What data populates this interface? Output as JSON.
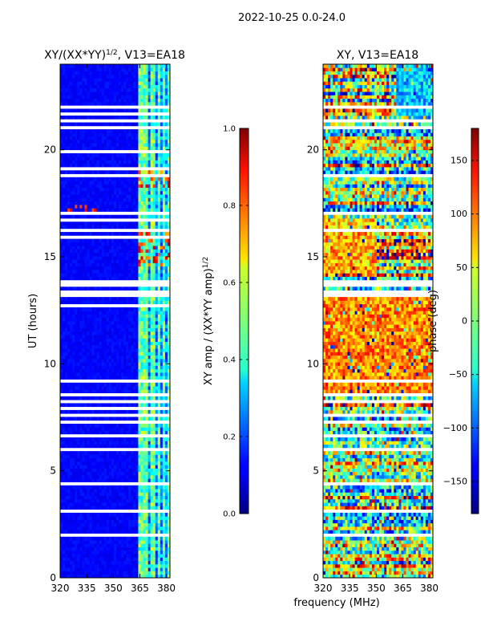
{
  "suptitle": "2022-10-25 0.0-24.0",
  "xlabel_common": "frequency (MHz)",
  "chart_data": [
    {
      "type": "heatmap",
      "title_main": "XY/(XX*YY)",
      "title_sup": "1/2",
      "title_rest": ", V13=EA18",
      "xlabel": "",
      "ylabel": "UT (hours)",
      "xlim": [
        320,
        382
      ],
      "ylim": [
        0,
        24
      ],
      "x_ticks": [
        320,
        335,
        350,
        365,
        380
      ],
      "y_ticks": [
        0,
        5,
        10,
        15,
        20
      ],
      "colorbar": {
        "label_main": "XY amp / (XX*YY amp)",
        "label_sup": "1/2",
        "range": [
          0.0,
          1.0
        ],
        "ticks": [
          "0.0",
          "0.2",
          "0.4",
          "0.6",
          "0.8",
          "1.0"
        ],
        "tick_values": [
          0.0,
          0.2,
          0.4,
          0.6,
          0.8,
          1.0
        ]
      },
      "gaps_hours": [
        [
          0.62,
          0.65
        ],
        [
          0.95,
          0.98
        ],
        [
          1.28,
          1.31
        ],
        [
          1.78,
          1.81
        ],
        [
          1.95,
          2.1
        ],
        [
          2.4,
          2.43
        ],
        [
          2.75,
          2.8
        ],
        [
          3.1,
          3.13
        ],
        [
          3.38,
          3.41
        ],
        [
          4.4,
          4.45
        ],
        [
          5.85,
          6.0
        ],
        [
          6.2,
          6.3
        ],
        [
          6.6,
          6.65
        ],
        [
          6.85,
          6.95
        ],
        [
          7.2,
          7.3
        ],
        [
          7.55,
          7.75
        ],
        [
          7.85,
          8.05
        ],
        [
          8.2,
          8.35
        ],
        [
          8.55,
          8.62
        ],
        [
          9.15,
          9.3
        ],
        [
          9.7,
          9.78
        ],
        [
          10.55,
          10.62
        ],
        [
          11.2,
          11.25
        ],
        [
          12.65,
          12.72
        ],
        [
          13.05,
          13.5
        ],
        [
          13.65,
          13.95
        ],
        [
          14.05,
          14.15
        ],
        [
          14.22,
          14.3
        ],
        [
          15.9,
          15.98
        ],
        [
          16.22,
          16.3
        ],
        [
          16.65,
          16.72
        ],
        [
          17.0,
          17.05
        ],
        [
          17.4,
          17.5
        ],
        [
          17.75,
          17.82
        ],
        [
          18.02,
          18.1
        ],
        [
          18.75,
          18.82
        ],
        [
          19.1,
          19.2
        ],
        [
          19.45,
          19.55
        ],
        [
          19.88,
          20.0
        ],
        [
          20.3,
          20.38
        ],
        [
          20.62,
          20.7
        ],
        [
          21.0,
          21.1
        ],
        [
          21.3,
          21.45
        ],
        [
          21.6,
          21.7
        ],
        [
          22.0,
          22.1
        ]
      ],
      "bright_channels_mhz": [
        365,
        368,
        372,
        375,
        378,
        381
      ]
    },
    {
      "type": "heatmap",
      "title_main": "XY, V13=EA18",
      "xlabel": "",
      "ylabel": "",
      "xlim": [
        320,
        382
      ],
      "ylim": [
        0,
        24
      ],
      "x_ticks": [
        320,
        335,
        350,
        365,
        380
      ],
      "y_ticks": [
        0,
        5,
        10,
        15,
        20
      ],
      "colorbar": {
        "label_main": "phase (deg)",
        "range": [
          -180,
          180
        ],
        "ticks": [
          "150",
          "100",
          "50",
          "0",
          "−50",
          "−100",
          "−150"
        ],
        "tick_values": [
          150,
          100,
          50,
          0,
          -50,
          -100,
          -150
        ]
      },
      "gaps_hours": [
        [
          1.28,
          1.31
        ],
        [
          1.95,
          2.1
        ],
        [
          2.4,
          2.43
        ],
        [
          2.75,
          2.8
        ],
        [
          3.1,
          3.13
        ],
        [
          4.4,
          4.45
        ],
        [
          5.85,
          6.0
        ],
        [
          6.6,
          6.65
        ],
        [
          7.2,
          7.3
        ],
        [
          7.55,
          7.75
        ],
        [
          8.2,
          8.35
        ],
        [
          8.55,
          8.62
        ],
        [
          9.15,
          9.3
        ],
        [
          11.2,
          11.25
        ],
        [
          13.05,
          13.5
        ],
        [
          13.65,
          13.95
        ],
        [
          16.22,
          16.3
        ],
        [
          17.0,
          17.05
        ],
        [
          17.4,
          17.5
        ],
        [
          18.75,
          18.82
        ],
        [
          19.45,
          19.55
        ],
        [
          20.3,
          20.38
        ],
        [
          20.62,
          20.7
        ],
        [
          21.0,
          21.1
        ],
        [
          21.3,
          21.45
        ],
        [
          22.0,
          22.1
        ]
      ]
    }
  ]
}
